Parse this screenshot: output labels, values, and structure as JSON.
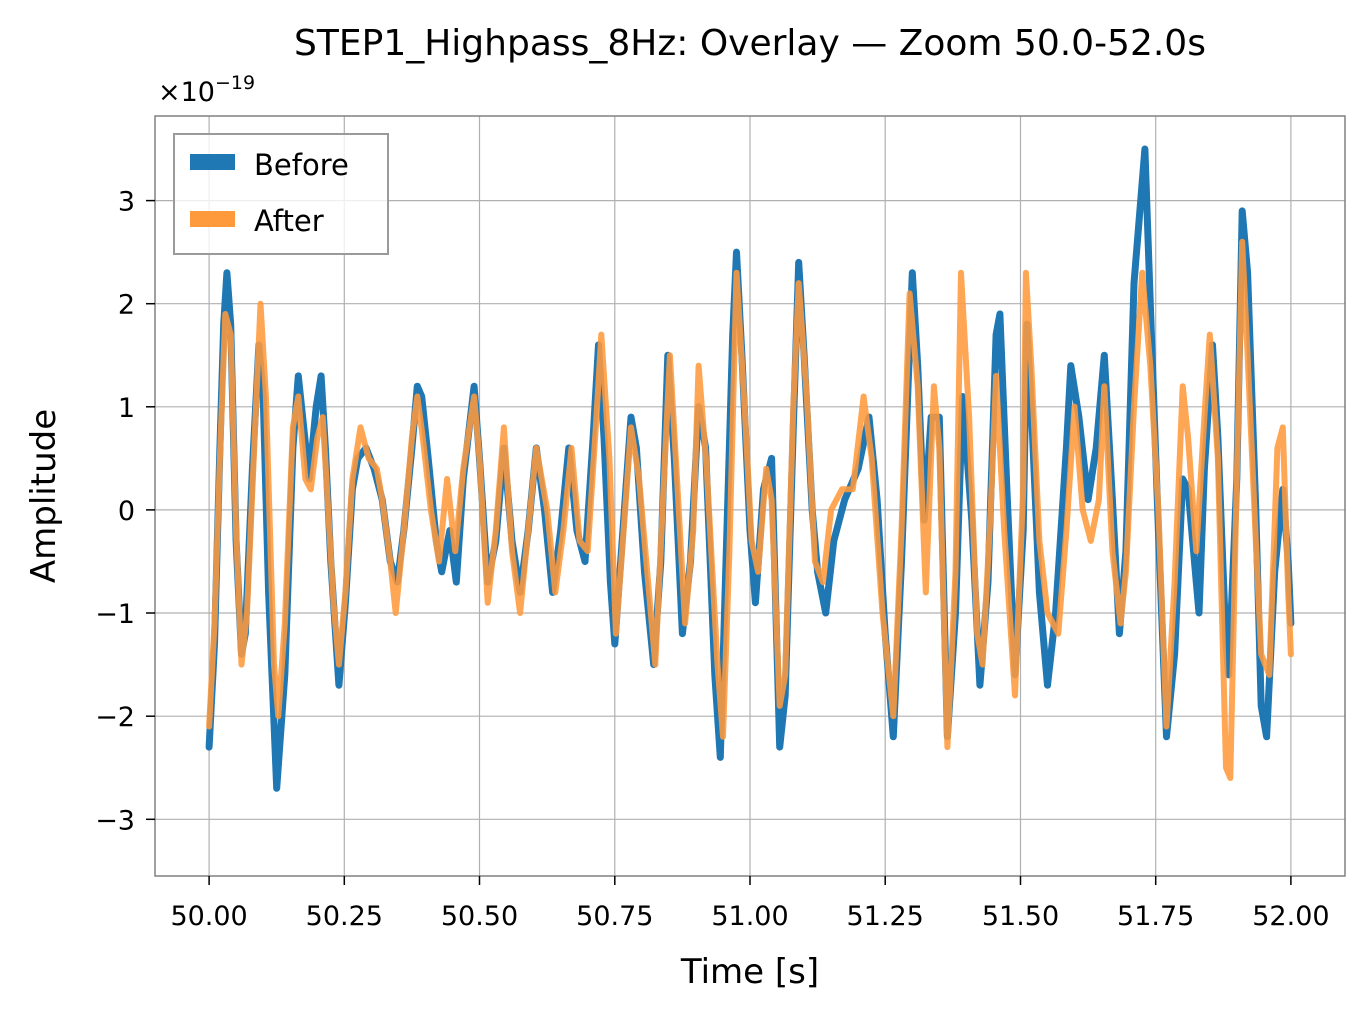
{
  "chart_data": {
    "type": "line",
    "title": "STEP1_Highpass_8Hz: Overlay — Zoom 50.0-52.0s",
    "xlabel": "Time [s]",
    "ylabel": "Amplitude",
    "offset_label": "×10",
    "offset_exponent": "−19",
    "xlim": [
      49.9,
      52.1
    ],
    "ylim": [
      -3.55,
      3.82
    ],
    "grid": true,
    "legend_position": "upper-left",
    "x_ticks": [
      50.0,
      50.25,
      50.5,
      50.75,
      51.0,
      51.25,
      51.5,
      51.75,
      52.0
    ],
    "x_tick_labels": [
      "50.00",
      "50.25",
      "50.50",
      "50.75",
      "51.00",
      "51.25",
      "51.50",
      "51.75",
      "52.00"
    ],
    "y_ticks": [
      -3,
      -2,
      -1,
      0,
      1,
      2,
      3
    ],
    "y_tick_labels": [
      "−3",
      "−2",
      "−1",
      "0",
      "1",
      "2",
      "3"
    ],
    "series": [
      {
        "name": "Before",
        "color": "#1f77b4",
        "points": [
          [
            50.0,
            -2.3
          ],
          [
            50.01,
            -1.3
          ],
          [
            50.02,
            0.6
          ],
          [
            50.027,
            1.8
          ],
          [
            50.033,
            2.3
          ],
          [
            50.04,
            1.8
          ],
          [
            50.05,
            -0.3
          ],
          [
            50.06,
            -1.4
          ],
          [
            50.067,
            -1.2
          ],
          [
            50.08,
            0.4
          ],
          [
            50.092,
            1.6
          ],
          [
            50.1,
            1.1
          ],
          [
            50.11,
            -0.8
          ],
          [
            50.125,
            -2.7
          ],
          [
            50.14,
            -1.6
          ],
          [
            50.155,
            0.6
          ],
          [
            50.165,
            1.3
          ],
          [
            50.175,
            0.8
          ],
          [
            50.185,
            0.3
          ],
          [
            50.198,
            1.0
          ],
          [
            50.207,
            1.3
          ],
          [
            50.215,
            0.6
          ],
          [
            50.225,
            -0.5
          ],
          [
            50.24,
            -1.7
          ],
          [
            50.252,
            -0.9
          ],
          [
            50.265,
            0.2
          ],
          [
            50.275,
            0.5
          ],
          [
            50.29,
            0.6
          ],
          [
            50.305,
            0.4
          ],
          [
            50.32,
            0.1
          ],
          [
            50.335,
            -0.5
          ],
          [
            50.348,
            -0.7
          ],
          [
            50.36,
            -0.2
          ],
          [
            50.375,
            0.6
          ],
          [
            50.385,
            1.2
          ],
          [
            50.393,
            1.1
          ],
          [
            50.405,
            0.5
          ],
          [
            50.42,
            -0.3
          ],
          [
            50.43,
            -0.6
          ],
          [
            50.445,
            -0.2
          ],
          [
            50.457,
            -0.7
          ],
          [
            50.47,
            0.3
          ],
          [
            50.49,
            1.2
          ],
          [
            50.5,
            0.5
          ],
          [
            50.515,
            -0.7
          ],
          [
            50.53,
            -0.3
          ],
          [
            50.545,
            0.6
          ],
          [
            50.56,
            -0.3
          ],
          [
            50.575,
            -0.8
          ],
          [
            50.59,
            -0.2
          ],
          [
            50.605,
            0.6
          ],
          [
            50.62,
            0.0
          ],
          [
            50.635,
            -0.8
          ],
          [
            50.65,
            -0.2
          ],
          [
            50.665,
            0.6
          ],
          [
            50.68,
            -0.2
          ],
          [
            50.695,
            -0.5
          ],
          [
            50.71,
            0.7
          ],
          [
            50.72,
            1.6
          ],
          [
            50.73,
            0.7
          ],
          [
            50.742,
            -0.7
          ],
          [
            50.75,
            -1.3
          ],
          [
            50.765,
            -0.2
          ],
          [
            50.78,
            0.9
          ],
          [
            50.79,
            0.6
          ],
          [
            50.805,
            -0.6
          ],
          [
            50.822,
            -1.5
          ],
          [
            50.835,
            -0.5
          ],
          [
            50.848,
            1.5
          ],
          [
            50.86,
            0.5
          ],
          [
            50.875,
            -1.2
          ],
          [
            50.89,
            -0.5
          ],
          [
            50.905,
            1.0
          ],
          [
            50.918,
            0.6
          ],
          [
            50.935,
            -1.6
          ],
          [
            50.945,
            -2.4
          ],
          [
            50.955,
            -0.6
          ],
          [
            50.968,
            1.7
          ],
          [
            50.975,
            2.5
          ],
          [
            50.985,
            1.5
          ],
          [
            51.0,
            -0.2
          ],
          [
            51.01,
            -0.9
          ],
          [
            51.025,
            0.2
          ],
          [
            51.04,
            0.5
          ],
          [
            51.055,
            -2.3
          ],
          [
            51.065,
            -1.8
          ],
          [
            51.08,
            0.8
          ],
          [
            51.09,
            2.4
          ],
          [
            51.1,
            1.5
          ],
          [
            51.115,
            0.0
          ],
          [
            51.125,
            -0.6
          ],
          [
            51.14,
            -1.0
          ],
          [
            51.155,
            -0.3
          ],
          [
            51.175,
            0.1
          ],
          [
            51.2,
            0.4
          ],
          [
            51.22,
            0.9
          ],
          [
            51.235,
            0.1
          ],
          [
            51.25,
            -1.2
          ],
          [
            51.265,
            -2.2
          ],
          [
            51.28,
            -0.5
          ],
          [
            51.3,
            2.3
          ],
          [
            51.31,
            1.4
          ],
          [
            51.322,
            -0.1
          ],
          [
            51.335,
            0.9
          ],
          [
            51.35,
            0.9
          ],
          [
            51.365,
            -2.2
          ],
          [
            51.38,
            -1.0
          ],
          [
            51.393,
            1.1
          ],
          [
            51.41,
            -0.1
          ],
          [
            51.425,
            -1.7
          ],
          [
            51.44,
            -0.7
          ],
          [
            51.455,
            1.7
          ],
          [
            51.462,
            1.9
          ],
          [
            51.475,
            0.2
          ],
          [
            51.49,
            -1.6
          ],
          [
            51.505,
            -0.2
          ],
          [
            51.512,
            1.8
          ],
          [
            51.52,
            1.0
          ],
          [
            51.535,
            -0.8
          ],
          [
            51.55,
            -1.7
          ],
          [
            51.565,
            -1.0
          ],
          [
            51.585,
            0.6
          ],
          [
            51.593,
            1.4
          ],
          [
            51.608,
            0.9
          ],
          [
            51.625,
            0.1
          ],
          [
            51.64,
            0.6
          ],
          [
            51.655,
            1.5
          ],
          [
            51.67,
            0.1
          ],
          [
            51.683,
            -1.2
          ],
          [
            51.695,
            -0.4
          ],
          [
            51.71,
            2.2
          ],
          [
            51.73,
            3.5
          ],
          [
            51.74,
            2.0
          ],
          [
            51.755,
            -0.2
          ],
          [
            51.77,
            -2.2
          ],
          [
            51.785,
            -1.4
          ],
          [
            51.8,
            0.3
          ],
          [
            51.81,
            0.2
          ],
          [
            51.83,
            -1.0
          ],
          [
            51.84,
            0.4
          ],
          [
            51.855,
            1.6
          ],
          [
            51.865,
            0.7
          ],
          [
            51.88,
            -1.3
          ],
          [
            51.885,
            -1.6
          ],
          [
            51.9,
            0.3
          ],
          [
            51.91,
            2.9
          ],
          [
            51.92,
            2.3
          ],
          [
            51.935,
            0.0
          ],
          [
            51.945,
            -1.9
          ],
          [
            51.955,
            -2.2
          ],
          [
            51.97,
            -0.6
          ],
          [
            51.985,
            0.2
          ],
          [
            51.995,
            -0.5
          ],
          [
            52.0,
            -1.1
          ]
        ]
      },
      {
        "name": "After",
        "color": "#ff9a3c",
        "points": [
          [
            50.0,
            -2.1
          ],
          [
            50.01,
            -1.1
          ],
          [
            50.02,
            0.5
          ],
          [
            50.03,
            1.9
          ],
          [
            50.04,
            1.7
          ],
          [
            50.05,
            -0.2
          ],
          [
            50.06,
            -1.5
          ],
          [
            50.07,
            -1.0
          ],
          [
            50.085,
            0.8
          ],
          [
            50.095,
            2.0
          ],
          [
            50.105,
            1.1
          ],
          [
            50.12,
            -1.5
          ],
          [
            50.128,
            -2.0
          ],
          [
            50.14,
            -1.1
          ],
          [
            50.155,
            0.8
          ],
          [
            50.165,
            1.1
          ],
          [
            50.178,
            0.3
          ],
          [
            50.188,
            0.2
          ],
          [
            50.2,
            0.7
          ],
          [
            50.21,
            0.9
          ],
          [
            50.218,
            0.2
          ],
          [
            50.23,
            -0.9
          ],
          [
            50.24,
            -1.5
          ],
          [
            50.252,
            -0.8
          ],
          [
            50.265,
            0.3
          ],
          [
            50.28,
            0.8
          ],
          [
            50.295,
            0.5
          ],
          [
            50.31,
            0.4
          ],
          [
            50.32,
            0.1
          ],
          [
            50.335,
            -0.5
          ],
          [
            50.345,
            -1.0
          ],
          [
            50.36,
            -0.2
          ],
          [
            50.375,
            0.7
          ],
          [
            50.385,
            1.1
          ],
          [
            50.395,
            0.7
          ],
          [
            50.41,
            0.0
          ],
          [
            50.425,
            -0.5
          ],
          [
            50.44,
            0.3
          ],
          [
            50.455,
            -0.4
          ],
          [
            50.47,
            0.4
          ],
          [
            50.49,
            1.1
          ],
          [
            50.5,
            0.5
          ],
          [
            50.515,
            -0.9
          ],
          [
            50.53,
            -0.2
          ],
          [
            50.545,
            0.8
          ],
          [
            50.56,
            -0.4
          ],
          [
            50.575,
            -1.0
          ],
          [
            50.59,
            -0.2
          ],
          [
            50.605,
            0.6
          ],
          [
            50.625,
            0.0
          ],
          [
            50.64,
            -0.8
          ],
          [
            50.655,
            -0.2
          ],
          [
            50.67,
            0.6
          ],
          [
            50.685,
            -0.3
          ],
          [
            50.7,
            -0.4
          ],
          [
            50.715,
            0.8
          ],
          [
            50.725,
            1.7
          ],
          [
            50.74,
            0.5
          ],
          [
            50.752,
            -1.2
          ],
          [
            50.765,
            -0.3
          ],
          [
            50.78,
            0.8
          ],
          [
            50.795,
            0.3
          ],
          [
            50.81,
            -0.6
          ],
          [
            50.825,
            -1.5
          ],
          [
            50.84,
            0.2
          ],
          [
            50.852,
            1.5
          ],
          [
            50.865,
            0.3
          ],
          [
            50.88,
            -1.1
          ],
          [
            50.895,
            -0.2
          ],
          [
            50.905,
            1.4
          ],
          [
            50.92,
            0.4
          ],
          [
            50.94,
            -1.5
          ],
          [
            50.95,
            -2.2
          ],
          [
            50.962,
            -0.4
          ],
          [
            50.975,
            2.3
          ],
          [
            50.99,
            1.0
          ],
          [
            51.003,
            -0.3
          ],
          [
            51.015,
            -0.6
          ],
          [
            51.03,
            0.4
          ],
          [
            51.04,
            0.1
          ],
          [
            51.055,
            -1.9
          ],
          [
            51.065,
            -1.6
          ],
          [
            51.08,
            1.0
          ],
          [
            51.09,
            2.2
          ],
          [
            51.105,
            1.1
          ],
          [
            51.12,
            -0.5
          ],
          [
            51.135,
            -0.7
          ],
          [
            51.15,
            0.0
          ],
          [
            51.17,
            0.2
          ],
          [
            51.19,
            0.2
          ],
          [
            51.21,
            1.1
          ],
          [
            51.225,
            0.5
          ],
          [
            51.245,
            -1.0
          ],
          [
            51.265,
            -2.0
          ],
          [
            51.28,
            -0.2
          ],
          [
            51.295,
            2.1
          ],
          [
            51.31,
            1.2
          ],
          [
            51.325,
            -0.8
          ],
          [
            51.34,
            1.2
          ],
          [
            51.35,
            0.6
          ],
          [
            51.365,
            -2.3
          ],
          [
            51.38,
            -0.6
          ],
          [
            51.39,
            2.3
          ],
          [
            51.405,
            0.9
          ],
          [
            51.42,
            -1.2
          ],
          [
            51.43,
            -1.5
          ],
          [
            51.445,
            0.0
          ],
          [
            51.455,
            1.3
          ],
          [
            51.47,
            -0.2
          ],
          [
            51.49,
            -1.8
          ],
          [
            51.505,
            0.2
          ],
          [
            51.51,
            2.3
          ],
          [
            51.52,
            1.4
          ],
          [
            51.535,
            -0.3
          ],
          [
            51.55,
            -1.0
          ],
          [
            51.57,
            -1.2
          ],
          [
            51.585,
            -0.2
          ],
          [
            51.6,
            1.0
          ],
          [
            51.615,
            0.0
          ],
          [
            51.63,
            -0.3
          ],
          [
            51.645,
            0.1
          ],
          [
            51.655,
            1.2
          ],
          [
            51.67,
            -0.4
          ],
          [
            51.685,
            -1.1
          ],
          [
            51.695,
            -0.6
          ],
          [
            51.71,
            1.0
          ],
          [
            51.725,
            2.3
          ],
          [
            51.74,
            1.4
          ],
          [
            51.755,
            0.0
          ],
          [
            51.77,
            -2.1
          ],
          [
            51.785,
            -0.7
          ],
          [
            51.8,
            1.2
          ],
          [
            51.81,
            0.7
          ],
          [
            51.825,
            -0.4
          ],
          [
            51.84,
            0.9
          ],
          [
            51.85,
            1.7
          ],
          [
            51.865,
            0.5
          ],
          [
            51.88,
            -2.5
          ],
          [
            51.888,
            -2.6
          ],
          [
            51.9,
            0.3
          ],
          [
            51.91,
            2.6
          ],
          [
            51.92,
            1.5
          ],
          [
            51.935,
            -0.3
          ],
          [
            51.945,
            -1.4
          ],
          [
            51.96,
            -1.6
          ],
          [
            51.975,
            0.6
          ],
          [
            51.985,
            0.8
          ],
          [
            51.995,
            -0.8
          ],
          [
            52.0,
            -1.4
          ]
        ]
      }
    ]
  }
}
